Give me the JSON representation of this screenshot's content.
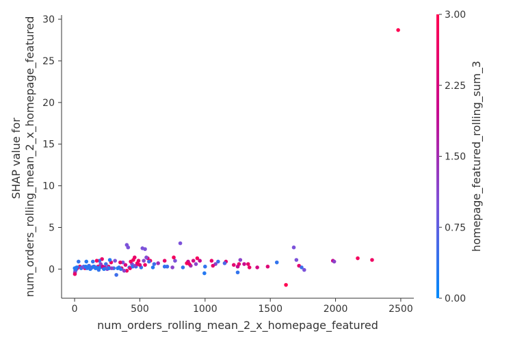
{
  "chart_data": {
    "type": "scatter",
    "title": "",
    "xlabel": "num_orders_rolling_mean_2_x_homepage_featured",
    "ylabel_lines": [
      "SHAP value for",
      "num_orders_rolling_mean_2_x_homepage_featured"
    ],
    "xlim": [
      -100,
      2600
    ],
    "ylim": [
      -3.5,
      30.5
    ],
    "xticks": [
      0,
      500,
      1000,
      1500,
      2000,
      2500
    ],
    "xtick_labels": [
      "0",
      "500",
      "1000",
      "1500",
      "2000",
      "2500"
    ],
    "yticks": [
      0,
      5,
      10,
      15,
      20,
      25,
      30
    ],
    "ytick_labels": [
      "0",
      "5",
      "10",
      "15",
      "20",
      "25",
      "30"
    ],
    "grid": false,
    "colorbar": {
      "label": "homepage_featured_rolling_sum_3",
      "range": [
        0,
        3
      ],
      "ticks": [
        0,
        0.75,
        1.5,
        2.25,
        3.0
      ],
      "tick_labels": [
        "0.00",
        "0.75",
        "1.50",
        "2.25",
        "3.00"
      ],
      "colors": [
        "#008afb",
        "#7c52d9",
        "#c8098e",
        "#ff0051"
      ]
    },
    "points": [
      {
        "x": 2480,
        "y": 28.7,
        "c": 3.0
      },
      {
        "x": 1620,
        "y": -1.9,
        "c": 3.0
      },
      {
        "x": 2280,
        "y": 1.1,
        "c": 2.7
      },
      {
        "x": 2170,
        "y": 1.3,
        "c": 2.8
      },
      {
        "x": 1980,
        "y": 1.0,
        "c": 2.0
      },
      {
        "x": 1990,
        "y": 0.9,
        "c": 1.2
      },
      {
        "x": 1680,
        "y": 2.6,
        "c": 1.0
      },
      {
        "x": 1700,
        "y": 1.1,
        "c": 1.0
      },
      {
        "x": 1720,
        "y": 0.4,
        "c": 2.5
      },
      {
        "x": 1740,
        "y": 0.2,
        "c": 0.5
      },
      {
        "x": 1760,
        "y": -0.1,
        "c": 1.0
      },
      {
        "x": 1550,
        "y": 0.8,
        "c": 0.4
      },
      {
        "x": 1480,
        "y": 0.3,
        "c": 2.4
      },
      {
        "x": 1400,
        "y": 0.2,
        "c": 2.2
      },
      {
        "x": 1340,
        "y": 0.2,
        "c": 2.6
      },
      {
        "x": 1330,
        "y": 0.6,
        "c": 2.6
      },
      {
        "x": 1300,
        "y": 0.6,
        "c": 2.0
      },
      {
        "x": 1270,
        "y": 1.1,
        "c": 1.2
      },
      {
        "x": 1260,
        "y": 0.6,
        "c": 2.6
      },
      {
        "x": 1250,
        "y": -0.4,
        "c": 0.4
      },
      {
        "x": 1250,
        "y": 0.3,
        "c": 2.0
      },
      {
        "x": 1220,
        "y": 0.5,
        "c": 2.5
      },
      {
        "x": 1160,
        "y": 0.9,
        "c": 2.4
      },
      {
        "x": 1150,
        "y": 0.7,
        "c": 0.6
      },
      {
        "x": 1100,
        "y": 0.9,
        "c": 0.5
      },
      {
        "x": 1080,
        "y": 0.6,
        "c": 1.2
      },
      {
        "x": 1060,
        "y": 0.4,
        "c": 2.5
      },
      {
        "x": 1050,
        "y": 1.0,
        "c": 2.6
      },
      {
        "x": 1000,
        "y": 0.3,
        "c": 0.4
      },
      {
        "x": 995,
        "y": -0.5,
        "c": 0.3
      },
      {
        "x": 960,
        "y": 1.0,
        "c": 2.0
      },
      {
        "x": 940,
        "y": 1.3,
        "c": 2.8
      },
      {
        "x": 930,
        "y": 0.6,
        "c": 1.2
      },
      {
        "x": 910,
        "y": 1.0,
        "c": 2.2
      },
      {
        "x": 890,
        "y": 0.4,
        "c": 1.5
      },
      {
        "x": 880,
        "y": 0.6,
        "c": 2.6
      },
      {
        "x": 870,
        "y": 0.9,
        "c": 2.0
      },
      {
        "x": 860,
        "y": 0.7,
        "c": 2.8
      },
      {
        "x": 810,
        "y": 3.1,
        "c": 1.0
      },
      {
        "x": 830,
        "y": 0.2,
        "c": 0.4
      },
      {
        "x": 770,
        "y": 1.0,
        "c": 1.0
      },
      {
        "x": 760,
        "y": 1.4,
        "c": 2.8
      },
      {
        "x": 750,
        "y": 0.2,
        "c": 1.2
      },
      {
        "x": 710,
        "y": 0.3,
        "c": 0.5
      },
      {
        "x": 690,
        "y": 1.0,
        "c": 2.6
      },
      {
        "x": 690,
        "y": 0.3,
        "c": 0.4
      },
      {
        "x": 640,
        "y": 0.7,
        "c": 1.5
      },
      {
        "x": 610,
        "y": 0.6,
        "c": 0.5
      },
      {
        "x": 600,
        "y": 0.2,
        "c": 0.3
      },
      {
        "x": 580,
        "y": 1.0,
        "c": 2.6
      },
      {
        "x": 570,
        "y": 0.9,
        "c": 0.5
      },
      {
        "x": 560,
        "y": 1.3,
        "c": 2.4
      },
      {
        "x": 550,
        "y": 1.4,
        "c": 1.1
      },
      {
        "x": 540,
        "y": 2.4,
        "c": 1.0
      },
      {
        "x": 540,
        "y": 0.5,
        "c": 2.7
      },
      {
        "x": 530,
        "y": 1.0,
        "c": 1.2
      },
      {
        "x": 520,
        "y": 2.5,
        "c": 1.0
      },
      {
        "x": 510,
        "y": 0.2,
        "c": 0.4
      },
      {
        "x": 500,
        "y": 0.5,
        "c": 2.2
      },
      {
        "x": 490,
        "y": 1.0,
        "c": 2.6
      },
      {
        "x": 480,
        "y": 0.7,
        "c": 2.8
      },
      {
        "x": 470,
        "y": 0.3,
        "c": 0.3
      },
      {
        "x": 460,
        "y": 1.4,
        "c": 2.6
      },
      {
        "x": 450,
        "y": 1.1,
        "c": 2.8
      },
      {
        "x": 440,
        "y": 0.6,
        "c": 1.1
      },
      {
        "x": 430,
        "y": 0.9,
        "c": 2.7
      },
      {
        "x": 420,
        "y": 0.2,
        "c": 0.5
      },
      {
        "x": 410,
        "y": 2.6,
        "c": 1.0
      },
      {
        "x": 400,
        "y": 2.9,
        "c": 1.0
      },
      {
        "x": 400,
        "y": -0.2,
        "c": 2.8
      },
      {
        "x": 390,
        "y": 0.5,
        "c": 2.3
      },
      {
        "x": 380,
        "y": -0.2,
        "c": 1.2
      },
      {
        "x": 370,
        "y": 0.8,
        "c": 1.0
      },
      {
        "x": 360,
        "y": 0.1,
        "c": 2.6
      },
      {
        "x": 350,
        "y": 0.8,
        "c": 2.6
      },
      {
        "x": 340,
        "y": 0.2,
        "c": 0.4
      },
      {
        "x": 320,
        "y": -0.7,
        "c": 0.5
      },
      {
        "x": 310,
        "y": 1.0,
        "c": 1.0
      },
      {
        "x": 300,
        "y": 0.1,
        "c": 0.4
      },
      {
        "x": 280,
        "y": 0.8,
        "c": 2.7
      },
      {
        "x": 270,
        "y": 1.1,
        "c": 0.3
      },
      {
        "x": 260,
        "y": 0.3,
        "c": 2.8
      },
      {
        "x": 250,
        "y": 0.0,
        "c": 1.2
      },
      {
        "x": 240,
        "y": 0.6,
        "c": 0.5
      },
      {
        "x": 230,
        "y": 0.2,
        "c": 2.6
      },
      {
        "x": 220,
        "y": 0.1,
        "c": 0.4
      },
      {
        "x": 210,
        "y": 1.2,
        "c": 2.6
      },
      {
        "x": 200,
        "y": 0.6,
        "c": 1.2
      },
      {
        "x": 190,
        "y": 1.0,
        "c": 0.4
      },
      {
        "x": 180,
        "y": 0.3,
        "c": 2.4
      },
      {
        "x": 170,
        "y": 1.0,
        "c": 2.8
      },
      {
        "x": 160,
        "y": 0.1,
        "c": 0.3
      },
      {
        "x": 150,
        "y": 0.3,
        "c": 1.1
      },
      {
        "x": 140,
        "y": 0.9,
        "c": 0.4
      },
      {
        "x": 130,
        "y": 0.2,
        "c": 2.5
      },
      {
        "x": 120,
        "y": 0.0,
        "c": 0.3
      },
      {
        "x": 110,
        "y": 0.4,
        "c": 0.5
      },
      {
        "x": 100,
        "y": 0.2,
        "c": 1.2
      },
      {
        "x": 90,
        "y": 0.9,
        "c": 0.3
      },
      {
        "x": 80,
        "y": 0.1,
        "c": 2.6
      },
      {
        "x": 70,
        "y": 0.3,
        "c": 0.4
      },
      {
        "x": 60,
        "y": 0.2,
        "c": 1.1
      },
      {
        "x": 50,
        "y": 0.1,
        "c": 0.3
      },
      {
        "x": 40,
        "y": 0.3,
        "c": 2.8
      },
      {
        "x": 30,
        "y": 0.9,
        "c": 0.4
      },
      {
        "x": 25,
        "y": 0.2,
        "c": 0.5
      },
      {
        "x": 20,
        "y": 0.1,
        "c": 2.6
      },
      {
        "x": 15,
        "y": 0.2,
        "c": 0.3
      },
      {
        "x": 10,
        "y": -0.1,
        "c": 1.1
      },
      {
        "x": 8,
        "y": 0.0,
        "c": 0.3
      },
      {
        "x": 5,
        "y": -0.2,
        "c": 0.4
      },
      {
        "x": 3,
        "y": -0.4,
        "c": 1.2
      },
      {
        "x": 2,
        "y": -0.6,
        "c": 2.6
      },
      {
        "x": 1,
        "y": 0.1,
        "c": 0.3
      },
      {
        "x": 55,
        "y": 0.2,
        "c": 0.4
      },
      {
        "x": 65,
        "y": 0.2,
        "c": 1.0
      },
      {
        "x": 85,
        "y": 0.3,
        "c": 0.3
      },
      {
        "x": 95,
        "y": 0.1,
        "c": 0.4
      },
      {
        "x": 105,
        "y": 0.2,
        "c": 0.3
      },
      {
        "x": 125,
        "y": 0.1,
        "c": 0.4
      },
      {
        "x": 135,
        "y": 0.2,
        "c": 0.5
      },
      {
        "x": 145,
        "y": 0.3,
        "c": 0.3
      },
      {
        "x": 165,
        "y": 0.2,
        "c": 0.4
      },
      {
        "x": 175,
        "y": 0.1,
        "c": 0.3
      },
      {
        "x": 185,
        "y": -0.1,
        "c": 0.4
      },
      {
        "x": 195,
        "y": 0.2,
        "c": 0.3
      },
      {
        "x": 215,
        "y": 0.3,
        "c": 2.0
      },
      {
        "x": 225,
        "y": 0.0,
        "c": 0.3
      },
      {
        "x": 245,
        "y": 0.1,
        "c": 0.4
      },
      {
        "x": 255,
        "y": 0.2,
        "c": 1.1
      },
      {
        "x": 265,
        "y": 0.1,
        "c": 0.3
      },
      {
        "x": 285,
        "y": 0.1,
        "c": 1.2
      },
      {
        "x": 330,
        "y": 0.1,
        "c": 0.3
      },
      {
        "x": 355,
        "y": 0.0,
        "c": 0.4
      },
      {
        "x": 425,
        "y": 0.1,
        "c": 2.6
      },
      {
        "x": 445,
        "y": 0.3,
        "c": 0.4
      },
      {
        "x": 465,
        "y": 0.4,
        "c": 1.2
      },
      {
        "x": 485,
        "y": 0.6,
        "c": 2.7
      }
    ]
  }
}
